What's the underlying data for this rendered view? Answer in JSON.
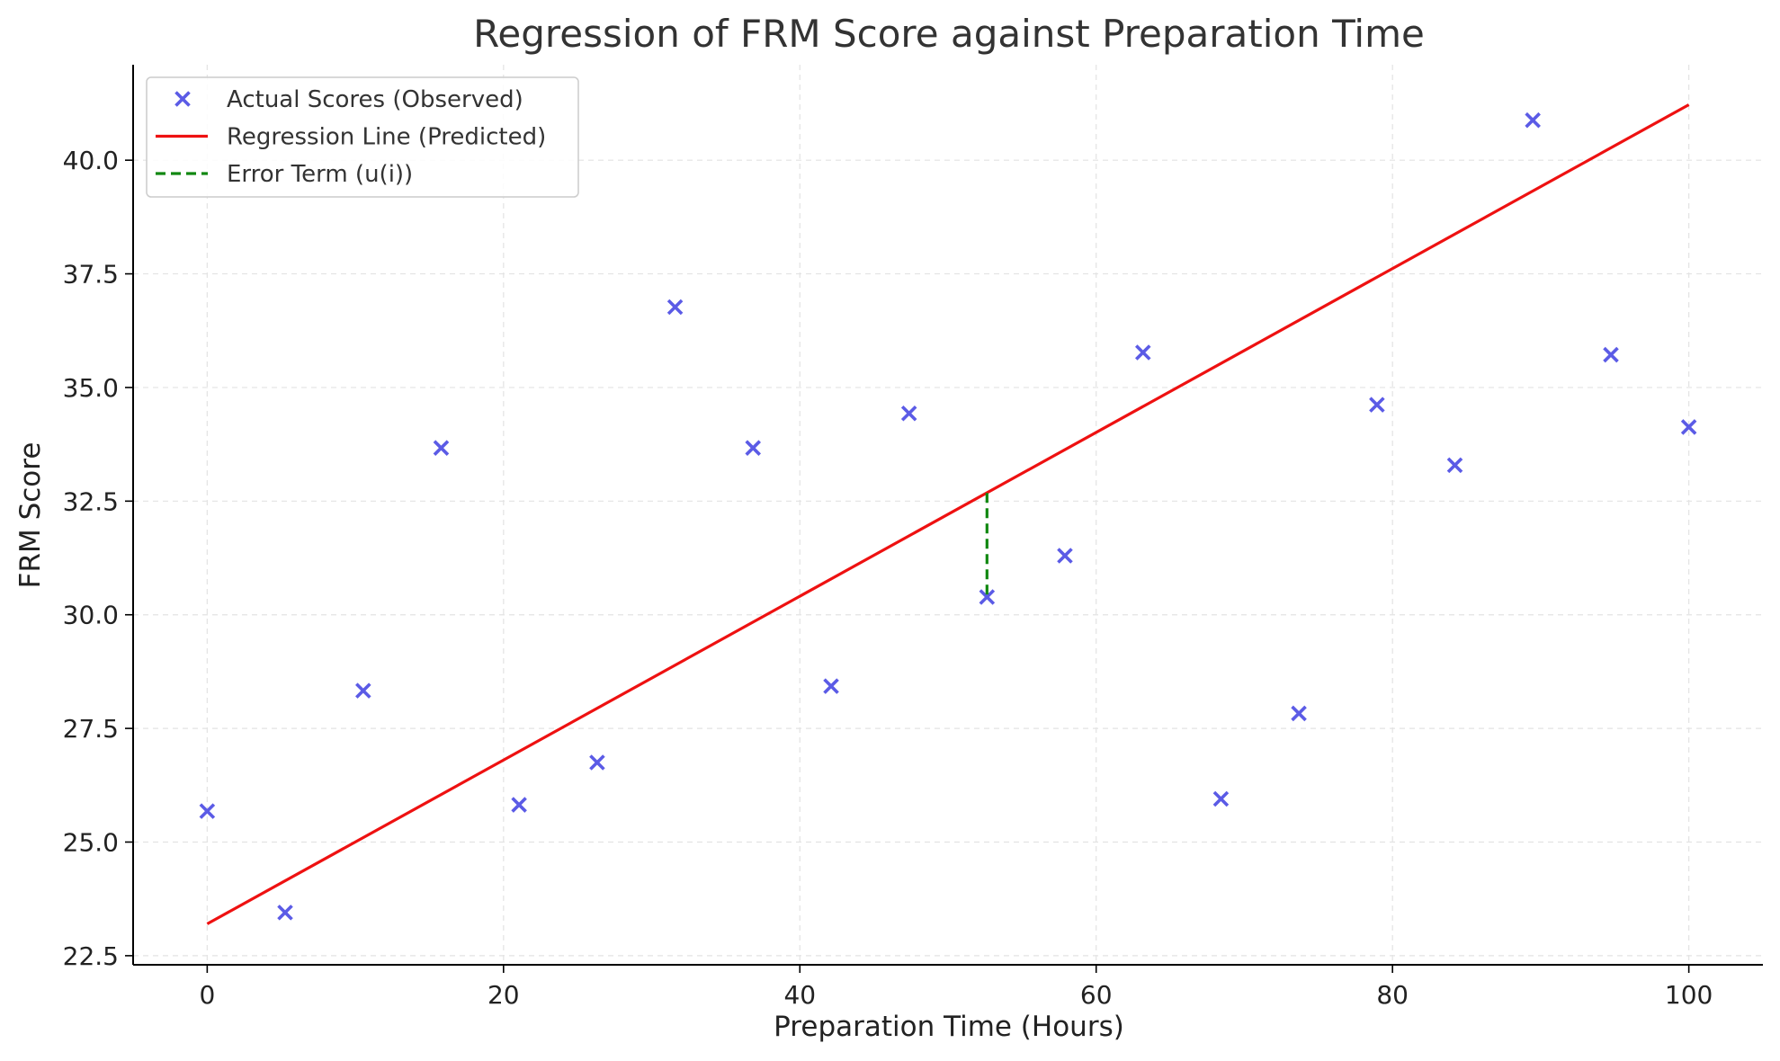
{
  "chart_data": {
    "type": "scatter",
    "title": "Regression of FRM Score against Preparation Time",
    "xlabel": "Preparation Time (Hours)",
    "ylabel": "FRM Score",
    "xlim": [
      -5,
      105
    ],
    "ylim": [
      22.3,
      42.1
    ],
    "x_ticks": [
      {
        "value": 0,
        "label": "0"
      },
      {
        "value": 20,
        "label": "20"
      },
      {
        "value": 40,
        "label": "40"
      },
      {
        "value": 60,
        "label": "60"
      },
      {
        "value": 80,
        "label": "80"
      },
      {
        "value": 100,
        "label": "100"
      }
    ],
    "y_ticks": [
      {
        "value": 22.5,
        "label": "22.5"
      },
      {
        "value": 25.0,
        "label": "25.0"
      },
      {
        "value": 27.5,
        "label": "27.5"
      },
      {
        "value": 30.0,
        "label": "30.0"
      },
      {
        "value": 32.5,
        "label": "32.5"
      },
      {
        "value": 35.0,
        "label": "35.0"
      },
      {
        "value": 37.5,
        "label": "37.5"
      },
      {
        "value": 40.0,
        "label": "40.0"
      }
    ],
    "grid": true,
    "legend_position": "top-left",
    "series": [
      {
        "name": "Actual Scores (Observed)",
        "kind": "scatter",
        "marker": "x",
        "color": "#5b5be6",
        "points": [
          {
            "x": 0.0,
            "y": 25.68
          },
          {
            "x": 5.26,
            "y": 23.45
          },
          {
            "x": 10.53,
            "y": 28.33
          },
          {
            "x": 15.79,
            "y": 33.67
          },
          {
            "x": 21.05,
            "y": 25.82
          },
          {
            "x": 26.32,
            "y": 26.75
          },
          {
            "x": 31.58,
            "y": 36.77
          },
          {
            "x": 36.84,
            "y": 33.67
          },
          {
            "x": 42.11,
            "y": 28.43
          },
          {
            "x": 47.37,
            "y": 34.43
          },
          {
            "x": 52.63,
            "y": 30.39
          },
          {
            "x": 57.89,
            "y": 31.3
          },
          {
            "x": 63.16,
            "y": 35.77
          },
          {
            "x": 68.42,
            "y": 25.95
          },
          {
            "x": 73.68,
            "y": 27.83
          },
          {
            "x": 78.95,
            "y": 34.62
          },
          {
            "x": 84.21,
            "y": 33.29
          },
          {
            "x": 89.47,
            "y": 40.88
          },
          {
            "x": 94.74,
            "y": 35.72
          },
          {
            "x": 100.0,
            "y": 34.13
          }
        ]
      },
      {
        "name": "Regression Line (Predicted)",
        "kind": "line",
        "color": "#ee1111",
        "points": [
          {
            "x": 0,
            "y": 23.2
          },
          {
            "x": 100,
            "y": 41.22
          }
        ]
      },
      {
        "name": "Error Term (u(i))",
        "kind": "dashed-line",
        "color": "#118811",
        "points": [
          {
            "x": 52.63,
            "y": 32.68
          },
          {
            "x": 52.63,
            "y": 30.39
          }
        ]
      }
    ]
  }
}
